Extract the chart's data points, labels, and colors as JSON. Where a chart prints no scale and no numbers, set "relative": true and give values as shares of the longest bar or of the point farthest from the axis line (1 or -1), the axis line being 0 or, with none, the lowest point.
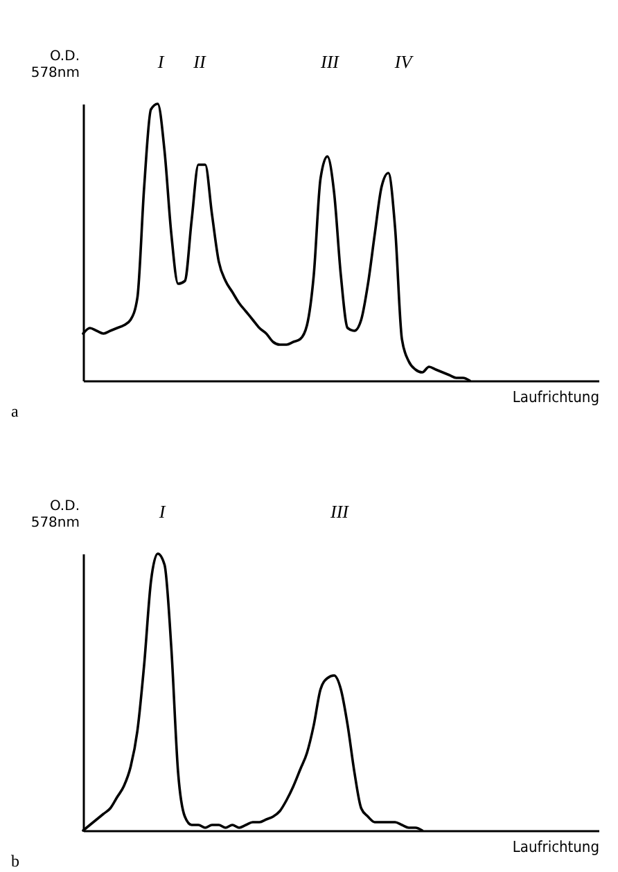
{
  "chart_data": [
    {
      "type": "line",
      "relative": true,
      "ylabel": "O.D.\n578nm",
      "xlabel": "Laufrichtung",
      "annotations": [
        "I",
        "II",
        "III",
        "IV",
        "a"
      ],
      "color": "#000000",
      "categories": [
        null,
        null,
        null,
        null,
        null,
        null,
        null,
        null,
        null,
        null,
        null,
        null,
        null,
        null,
        null,
        null,
        null,
        null,
        null,
        null,
        null,
        null,
        null,
        null,
        null,
        null,
        null,
        null,
        null,
        null,
        null,
        null,
        null,
        null,
        null,
        null,
        null,
        null,
        null,
        null,
        null,
        null,
        null,
        null,
        null,
        null,
        null,
        null,
        null,
        null,
        null,
        null,
        null,
        null,
        null,
        null,
        null,
        null,
        null,
        null,
        null,
        null,
        null,
        null,
        null,
        null,
        null,
        null,
        null,
        null,
        null,
        null,
        null,
        null,
        null,
        null,
        null
      ],
      "values": [
        0.17,
        0.19,
        0.18,
        0.17,
        0.18,
        0.19,
        0.2,
        0.22,
        0.3,
        0.7,
        0.98,
        1,
        0.83,
        0.53,
        0.35,
        0.36,
        0.58,
        0.78,
        0.78,
        0.6,
        0.43,
        0.36,
        0.32,
        0.28,
        0.25,
        0.22,
        0.19,
        0.17,
        0.14,
        0.13,
        0.13,
        0.14,
        0.15,
        0.2,
        0.38,
        0.73,
        0.81,
        0.68,
        0.38,
        0.19,
        0.18,
        0.22,
        0.35,
        0.53,
        0.7,
        0.75,
        0.55,
        0.15,
        0.07,
        0.04,
        0.03,
        0.05,
        0.04,
        0.03,
        0.02,
        0.01,
        0.01,
        0,
        null,
        null,
        null,
        null,
        null,
        null,
        null,
        null,
        null,
        null,
        null,
        null,
        null,
        null,
        null,
        null,
        null,
        null,
        null
      ]
    },
    {
      "type": "line",
      "relative": true,
      "ylabel": "O.D.\n578nm",
      "xlabel": "Laufrichtung",
      "annotations": [
        "I",
        "III",
        "b"
      ],
      "color": "#000000",
      "categories": [
        null,
        null,
        null,
        null,
        null,
        null,
        null,
        null,
        null,
        null,
        null,
        null,
        null,
        null,
        null,
        null,
        null,
        null,
        null,
        null,
        null,
        null,
        null,
        null,
        null,
        null,
        null,
        null,
        null,
        null,
        null,
        null,
        null,
        null,
        null,
        null,
        null,
        null,
        null,
        null,
        null,
        null,
        null,
        null,
        null,
        null,
        null,
        null,
        null,
        null,
        null,
        null,
        null,
        null,
        null,
        null,
        null,
        null,
        null,
        null,
        null,
        null,
        null,
        null,
        null,
        null,
        null,
        null,
        null,
        null,
        null,
        null,
        null,
        null,
        null,
        null,
        null
      ],
      "values": [
        0,
        0.02,
        0.04,
        0.06,
        0.08,
        0.12,
        0.16,
        0.23,
        0.36,
        0.6,
        0.9,
        1,
        0.96,
        0.66,
        0.21,
        0.05,
        0.02,
        0.02,
        0.01,
        0.02,
        0.02,
        0.01,
        0.02,
        0.01,
        0.02,
        0.03,
        0.03,
        0.04,
        0.05,
        0.07,
        0.11,
        0.16,
        0.22,
        0.28,
        0.38,
        0.51,
        0.55,
        0.56,
        0.51,
        0.38,
        0.21,
        0.08,
        0.05,
        0.03,
        0.03,
        0.03,
        0.03,
        0.02,
        0.01,
        0.01,
        0,
        null,
        null,
        null,
        null,
        null,
        null,
        null,
        null,
        null,
        null,
        null,
        null,
        null,
        null,
        null,
        null,
        null,
        null,
        null,
        null,
        null,
        null,
        null,
        null,
        null,
        null
      ]
    }
  ]
}
